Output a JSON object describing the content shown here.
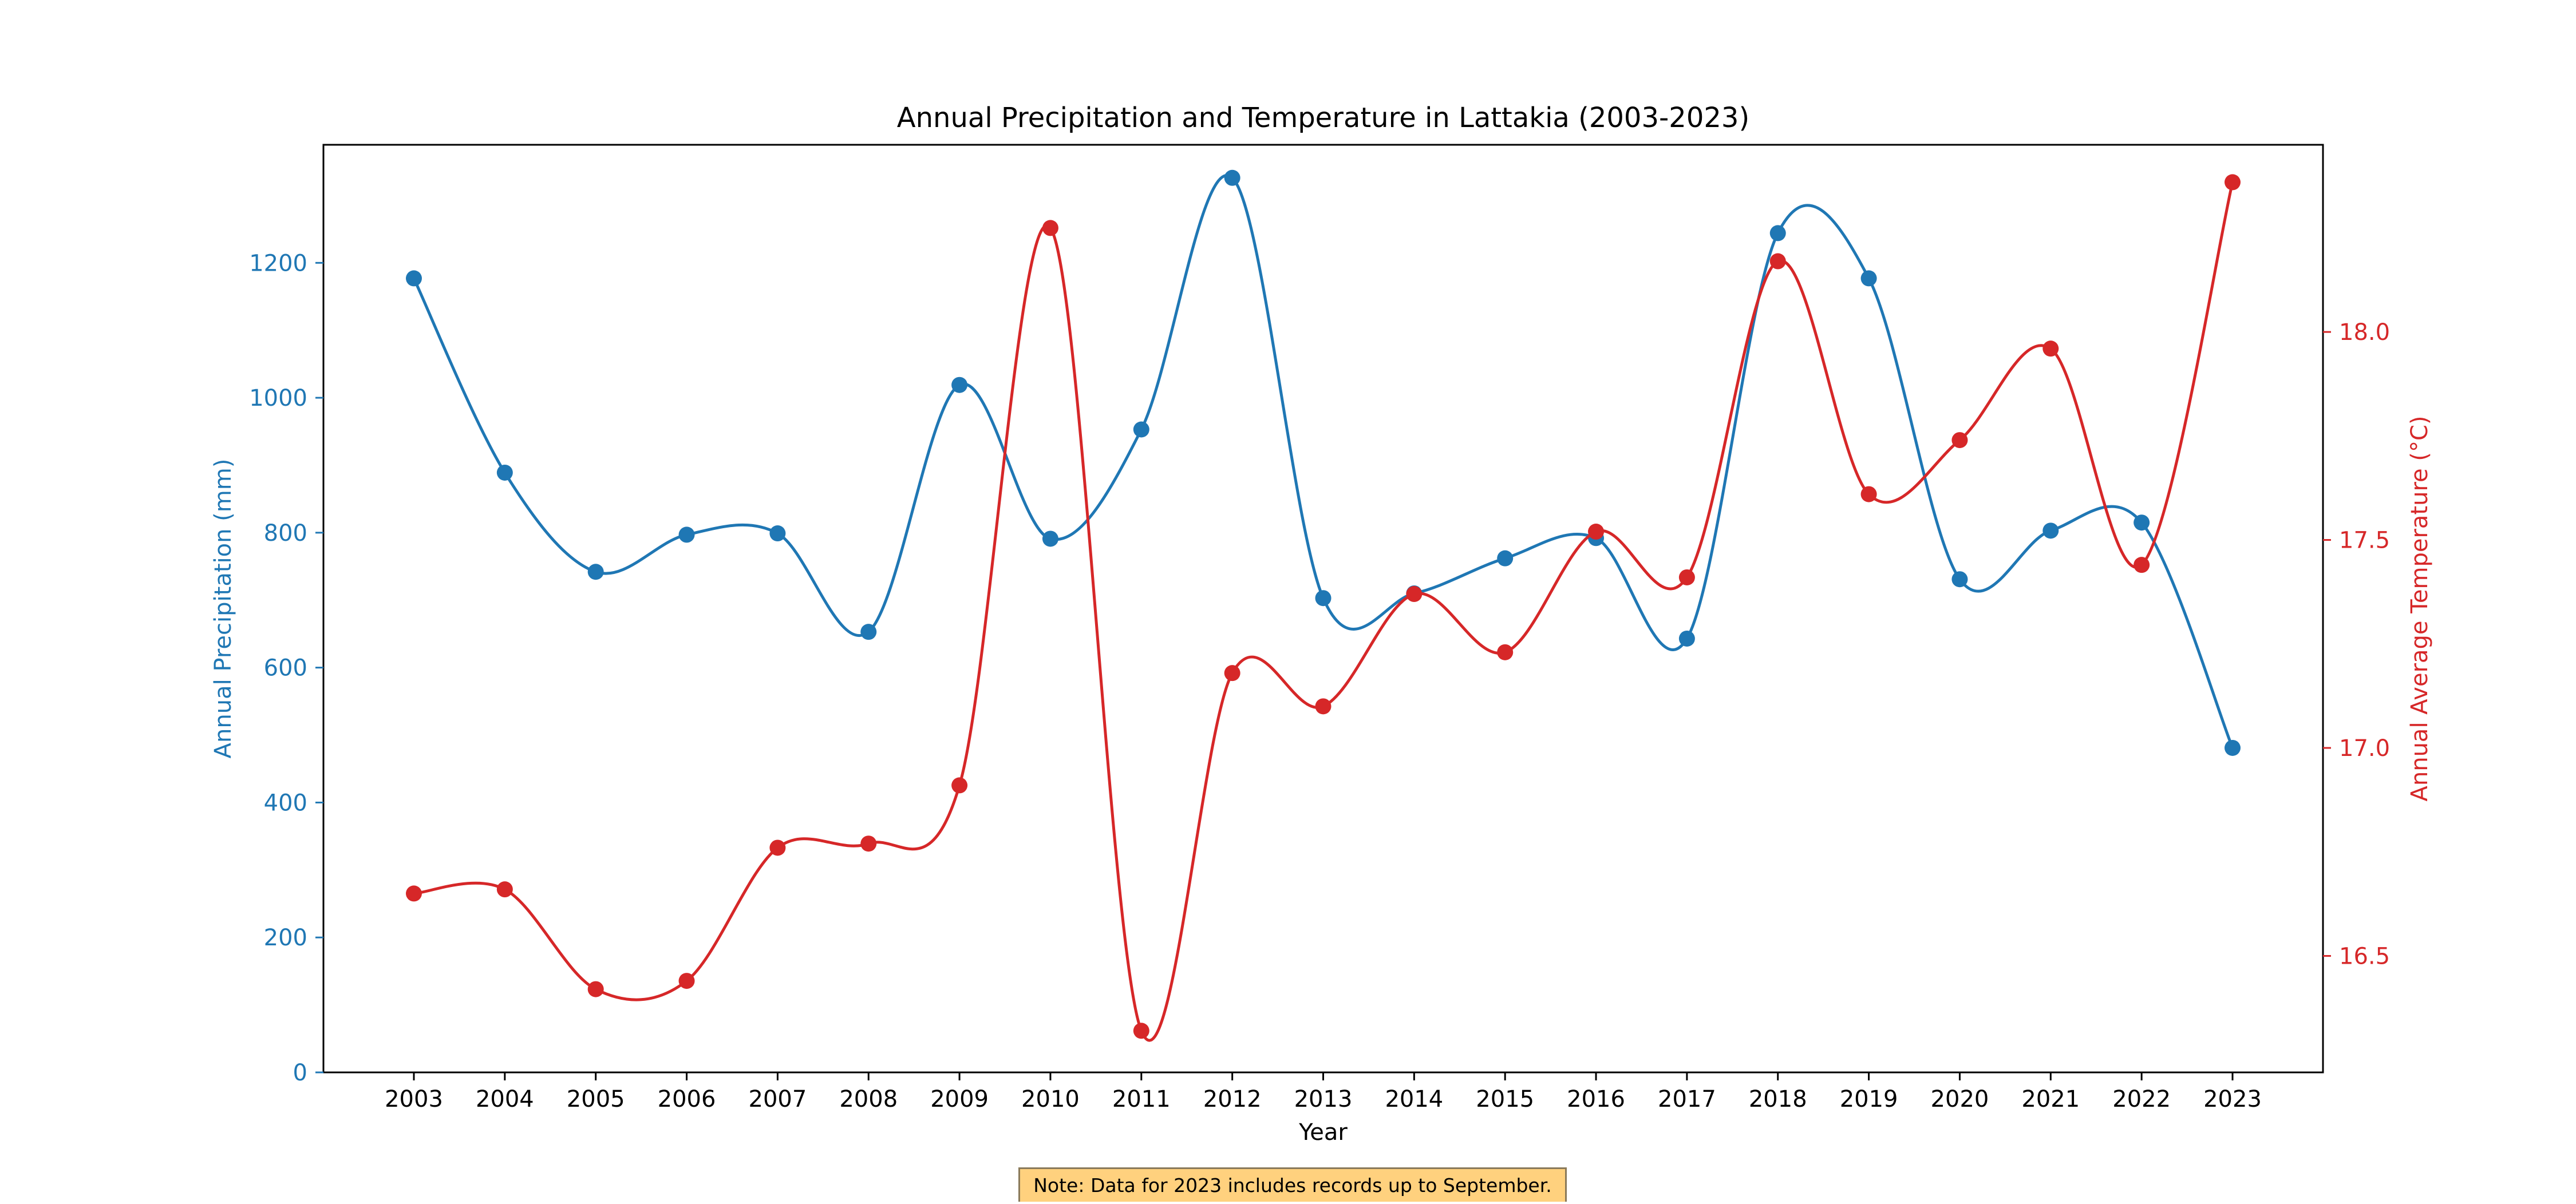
{
  "chart_data": {
    "type": "line",
    "title": "Annual Precipitation and Temperature in Lattakia (2003-2023)",
    "xlabel": "Year",
    "ylabel_left": "Annual Precipitation (mm)",
    "ylabel_right": "Annual Average Temperature (°C)",
    "categories": [
      "2003",
      "2004",
      "2005",
      "2006",
      "2007",
      "2008",
      "2009",
      "2010",
      "2011",
      "2012",
      "2013",
      "2014",
      "2015",
      "2016",
      "2017",
      "2018",
      "2019",
      "2020",
      "2021",
      "2022",
      "2023"
    ],
    "left_axis": {
      "ylim": [
        0,
        1375
      ],
      "ticks": [
        "0",
        "200",
        "400",
        "600",
        "800",
        "1000",
        "1200"
      ],
      "tick_values": [
        0,
        200,
        400,
        600,
        800,
        1000,
        1200
      ]
    },
    "right_axis": {
      "ylim": [
        16.22,
        18.45
      ],
      "ticks": [
        "16.5",
        "17.0",
        "17.5",
        "18.0"
      ],
      "tick_values": [
        16.5,
        17.0,
        17.5,
        18.0
      ]
    },
    "grid": false,
    "smoothed": true,
    "series": [
      {
        "axis": "left",
        "color": "#1f77b4",
        "values": [
          1177,
          889,
          742,
          797,
          799,
          653,
          1019,
          791,
          953,
          1326,
          703,
          710,
          762,
          792,
          643,
          1244,
          1177,
          731,
          803,
          815,
          481
        ]
      },
      {
        "axis": "right",
        "color": "#d62728",
        "values": [
          16.65,
          16.66,
          16.42,
          16.44,
          16.76,
          16.77,
          16.91,
          18.25,
          16.32,
          17.18,
          17.1,
          17.37,
          17.23,
          17.52,
          17.41,
          18.17,
          17.61,
          17.74,
          17.96,
          17.44,
          18.36
        ]
      }
    ]
  },
  "note": "Note: Data for 2023 includes records up to September."
}
